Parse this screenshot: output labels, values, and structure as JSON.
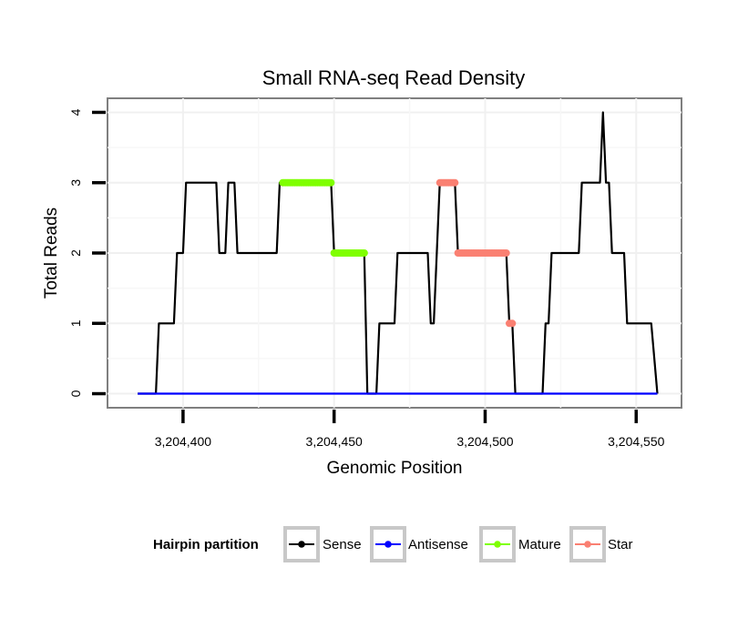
{
  "chart_data": {
    "type": "line",
    "title": "Small RNA-seq Read Density",
    "xlabel": "Genomic Position",
    "ylabel": "Total Reads",
    "xlim": [
      3204375,
      3204565
    ],
    "ylim": [
      -0.2,
      4.2
    ],
    "x_ticks": [
      3204400,
      3204450,
      3204500,
      3204550
    ],
    "x_tick_labels": [
      "3,204,400",
      "3,204,450",
      "3,204,500",
      "3,204,550"
    ],
    "y_ticks": [
      0,
      1,
      2,
      3,
      4
    ],
    "y_tick_labels": [
      "0",
      "1",
      "2",
      "3",
      "4"
    ],
    "grid": true,
    "legend": {
      "title": "Hairpin partition",
      "position": "bottom",
      "entries": [
        {
          "name": "Sense",
          "color": "#000000"
        },
        {
          "name": "Antisense",
          "color": "#0000ff"
        },
        {
          "name": "Mature",
          "color": "#7fff00"
        },
        {
          "name": "Star",
          "color": "#fa8072"
        }
      ]
    },
    "series": [
      {
        "name": "Sense",
        "color": "#000000",
        "style": "line",
        "points": [
          [
            3204385,
            0
          ],
          [
            3204391,
            0
          ],
          [
            3204392,
            1
          ],
          [
            3204397,
            1
          ],
          [
            3204398,
            2
          ],
          [
            3204400,
            2
          ],
          [
            3204401,
            3
          ],
          [
            3204411,
            3
          ],
          [
            3204412,
            2
          ],
          [
            3204414,
            2
          ],
          [
            3204415,
            3
          ],
          [
            3204417,
            3
          ],
          [
            3204418,
            2
          ],
          [
            3204431,
            2
          ],
          [
            3204432,
            3
          ],
          [
            3204449,
            3
          ],
          [
            3204450,
            2
          ],
          [
            3204460,
            2
          ],
          [
            3204461,
            0
          ],
          [
            3204464,
            0
          ],
          [
            3204465,
            1
          ],
          [
            3204470,
            1
          ],
          [
            3204471,
            2
          ],
          [
            3204481,
            2
          ],
          [
            3204482,
            1
          ],
          [
            3204483,
            1
          ],
          [
            3204485,
            3
          ],
          [
            3204490,
            3
          ],
          [
            3204491,
            2
          ],
          [
            3204507,
            2
          ],
          [
            3204508,
            1
          ],
          [
            3204509,
            1
          ],
          [
            3204510,
            0
          ],
          [
            3204519,
            0
          ],
          [
            3204520,
            1
          ],
          [
            3204521,
            1
          ],
          [
            3204522,
            2
          ],
          [
            3204531,
            2
          ],
          [
            3204532,
            3
          ],
          [
            3204538,
            3
          ],
          [
            3204539,
            4
          ],
          [
            3204540,
            3
          ],
          [
            3204541,
            3
          ],
          [
            3204542,
            2
          ],
          [
            3204546,
            2
          ],
          [
            3204547,
            1
          ],
          [
            3204555,
            1
          ],
          [
            3204557,
            0
          ]
        ]
      },
      {
        "name": "Antisense",
        "color": "#0000ff",
        "style": "line",
        "points": [
          [
            3204385,
            0
          ],
          [
            3204557,
            0
          ]
        ]
      },
      {
        "name": "Mature",
        "color": "#7fff00",
        "style": "segments",
        "segments": [
          {
            "x": [
              3204433,
              3204449
            ],
            "y": 3
          },
          {
            "x": [
              3204450,
              3204460
            ],
            "y": 2
          }
        ]
      },
      {
        "name": "Star",
        "color": "#fa8072",
        "style": "segments",
        "segments": [
          {
            "x": [
              3204485,
              3204490
            ],
            "y": 3
          },
          {
            "x": [
              3204491,
              3204507
            ],
            "y": 2
          },
          {
            "x": [
              3204508,
              3204509
            ],
            "y": 1
          }
        ]
      }
    ]
  }
}
